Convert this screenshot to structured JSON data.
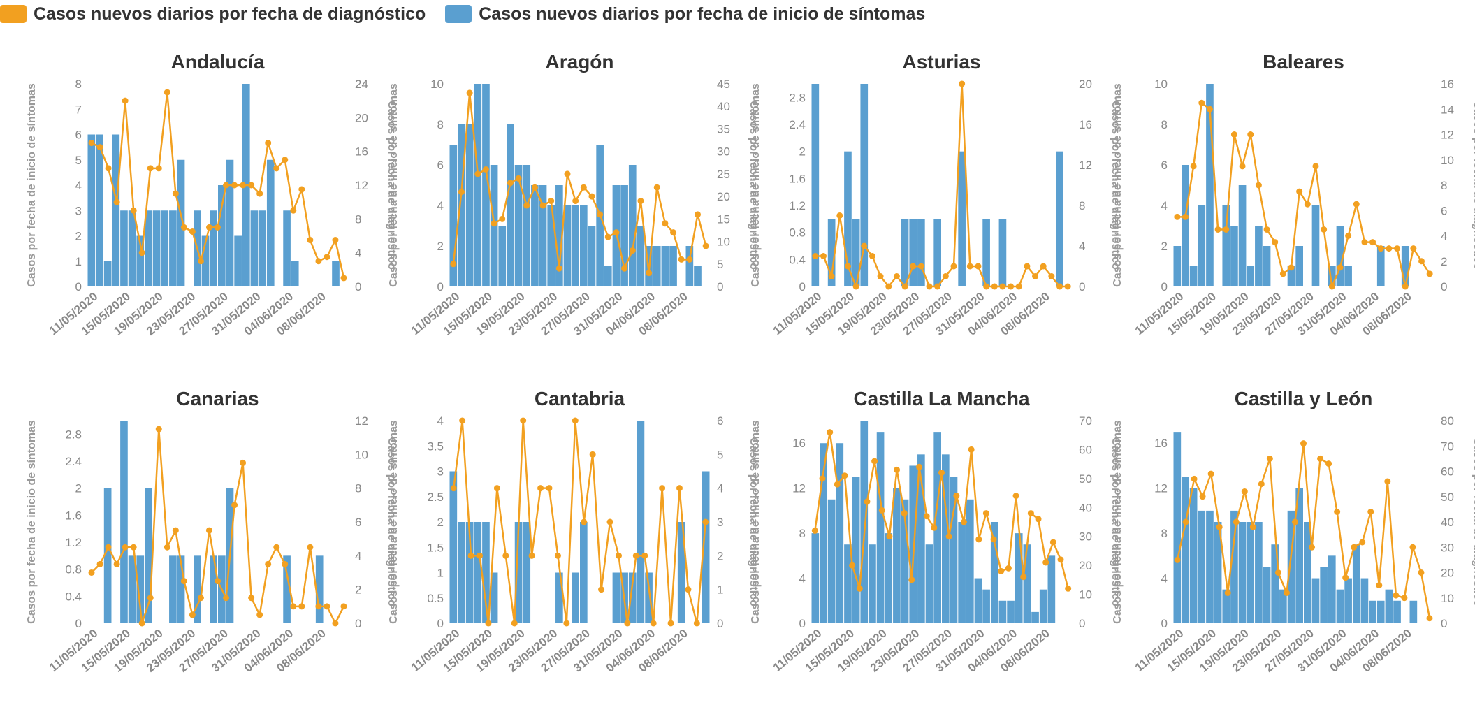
{
  "legend": {
    "diagnosis_label": "Casos nuevos diarios por fecha de diagnóstico",
    "symptoms_label": "Casos nuevos diarios por fecha de inicio de síntomas",
    "diagnosis_color": "#f2a020",
    "symptoms_color": "#5a9fd0"
  },
  "axis_labels": {
    "left": "Casos por fecha de inicio de síntomas",
    "right": "Casos por fecha de diagnóstico"
  },
  "x_ticks": [
    "11/05/2020",
    "15/05/2020",
    "19/05/2020",
    "23/05/2020",
    "27/05/2020",
    "31/05/2020",
    "04/06/2020",
    "08/06/2020"
  ],
  "chart_data": [
    {
      "type": "bar+line",
      "title": "Andalucía",
      "x_start": "11/05/2020",
      "left_ylim": [
        0,
        8
      ],
      "left_ticks": [
        "0",
        "1",
        "2",
        "3",
        "4",
        "5",
        "6",
        "7",
        "8"
      ],
      "right_ylim": [
        0,
        24
      ],
      "right_ticks": [
        "0",
        "4",
        "8",
        "12",
        "16",
        "20",
        "24"
      ],
      "bars_symptoms": [
        6,
        6,
        1,
        6,
        3,
        3,
        2,
        3,
        3,
        3,
        3,
        5,
        0,
        3,
        2,
        3,
        4,
        5,
        2,
        8,
        3,
        3,
        5,
        0,
        3,
        1,
        0,
        0,
        0,
        0,
        1,
        0
      ],
      "line_diagnosis": [
        17,
        16.5,
        14,
        10,
        22,
        9,
        4,
        14,
        14,
        23,
        11,
        7,
        6.5,
        3,
        7,
        7,
        12,
        12,
        12,
        12,
        11,
        17,
        14,
        15,
        9,
        11.5,
        5.5,
        3,
        3.5,
        5.5,
        1
      ]
    },
    {
      "type": "bar+line",
      "title": "Aragón",
      "x_start": "11/05/2020",
      "left_ylim": [
        0,
        10
      ],
      "left_ticks": [
        "0",
        "2",
        "4",
        "6",
        "8",
        "10"
      ],
      "right_ylim": [
        0,
        45
      ],
      "right_ticks": [
        "0",
        "5",
        "10",
        "15",
        "20",
        "25",
        "30",
        "35",
        "40",
        "45"
      ],
      "bars_symptoms": [
        7,
        8,
        8,
        10,
        10,
        6,
        3,
        8,
        6,
        6,
        5,
        5,
        4,
        5,
        4,
        4,
        4,
        3,
        7,
        1,
        5,
        5,
        6,
        3,
        2,
        2,
        2,
        2,
        0,
        2,
        1
      ],
      "line_diagnosis": [
        5,
        21,
        43,
        25,
        26,
        14,
        15,
        23,
        24,
        18,
        22,
        18,
        19,
        4,
        25,
        19,
        22,
        20,
        16,
        11,
        12,
        4,
        8,
        19,
        3,
        22,
        14,
        12,
        6,
        6,
        16,
        9
      ]
    },
    {
      "type": "bar+line",
      "title": "Asturias",
      "x_start": "11/05/2020",
      "left_ylim": [
        0,
        3
      ],
      "left_ticks": [
        "0",
        "0.4",
        "0.8",
        "1.2",
        "1.6",
        "2",
        "2.4",
        "2.8"
      ],
      "right_ylim": [
        0,
        20
      ],
      "right_ticks": [
        "0",
        "4",
        "8",
        "12",
        "16",
        "20"
      ],
      "bars_symptoms": [
        3,
        0,
        1,
        0,
        2,
        1,
        3,
        0,
        0,
        0,
        0,
        1,
        1,
        1,
        0,
        1,
        0,
        0,
        2,
        0,
        0,
        1,
        0,
        1,
        0,
        0,
        0,
        0,
        0,
        0,
        2,
        0,
        0
      ],
      "line_diagnosis": [
        3,
        3,
        1,
        7,
        2,
        0,
        4,
        3,
        1,
        0,
        1,
        0,
        2,
        2,
        0,
        0,
        1,
        2,
        20,
        2,
        2,
        0,
        0,
        0,
        0,
        0,
        2,
        1,
        2,
        1,
        0,
        0
      ]
    },
    {
      "type": "bar+line",
      "title": "Baleares",
      "x_start": "11/05/2020",
      "left_ylim": [
        0,
        10
      ],
      "left_ticks": [
        "0",
        "2",
        "4",
        "6",
        "8",
        "10"
      ],
      "right_ylim": [
        0,
        16
      ],
      "right_ticks": [
        "0",
        "2",
        "4",
        "6",
        "8",
        "10",
        "12",
        "14",
        "16"
      ],
      "bars_symptoms": [
        2,
        6,
        1,
        4,
        10,
        0,
        4,
        3,
        5,
        1,
        3,
        2,
        0,
        0,
        1,
        2,
        0,
        4,
        0,
        1,
        3,
        1,
        0,
        0,
        0,
        2,
        0,
        0,
        2,
        0
      ],
      "line_diagnosis": [
        5.5,
        5.5,
        9.5,
        14.5,
        14,
        4.5,
        4.5,
        12,
        9.5,
        12,
        8,
        4.5,
        3.5,
        1,
        1.5,
        7.5,
        6.5,
        9.5,
        4.5,
        0,
        1.5,
        4,
        6.5,
        3.5,
        3.5,
        3,
        3,
        3,
        0,
        3,
        2,
        1
      ]
    },
    {
      "type": "bar+line",
      "title": "Canarias",
      "x_start": "11/05/2020",
      "left_ylim": [
        0,
        3
      ],
      "left_ticks": [
        "0",
        "0.4",
        "0.8",
        "1.2",
        "1.6",
        "2",
        "2.4",
        "2.8"
      ],
      "right_ylim": [
        0,
        12
      ],
      "right_ticks": [
        "0",
        "2",
        "4",
        "6",
        "8",
        "10",
        "12"
      ],
      "bars_symptoms": [
        0,
        0,
        2,
        0,
        3,
        1,
        1,
        2,
        0,
        0,
        1,
        1,
        0,
        1,
        0,
        1,
        1,
        2,
        0,
        0,
        0,
        0,
        0,
        0,
        1,
        0,
        0,
        0,
        1,
        0
      ],
      "line_diagnosis": [
        3,
        3.5,
        4.5,
        3.5,
        4.5,
        4.5,
        0,
        1.5,
        11.5,
        4.5,
        5.5,
        2.5,
        0.5,
        1.5,
        5.5,
        2.5,
        1.5,
        7,
        9.5,
        1.5,
        0.5,
        3.5,
        4.5,
        3.5,
        1,
        1,
        4.5,
        1,
        1,
        0,
        1
      ]
    },
    {
      "type": "bar+line",
      "title": "Cantabria",
      "x_start": "11/05/2020",
      "left_ylim": [
        0,
        4
      ],
      "left_ticks": [
        "0",
        "0.5",
        "1",
        "1.5",
        "2",
        "2.5",
        "3",
        "3.5",
        "4"
      ],
      "right_ylim": [
        0,
        6
      ],
      "right_ticks": [
        "0",
        "1",
        "2",
        "3",
        "4",
        "5",
        "6"
      ],
      "bars_symptoms": [
        3,
        2,
        2,
        2,
        2,
        1,
        0,
        0,
        2,
        2,
        0,
        0,
        0,
        1,
        0,
        1,
        2,
        0,
        0,
        0,
        1,
        1,
        1,
        4,
        1,
        0,
        0,
        0,
        2,
        0,
        0,
        3
      ],
      "line_diagnosis": [
        4,
        6,
        2,
        2,
        0,
        4,
        2,
        0,
        6,
        2,
        4,
        4,
        2,
        0,
        6,
        3,
        5,
        1,
        3,
        2,
        0,
        2,
        2,
        0,
        4,
        0,
        4,
        1,
        0,
        3
      ]
    },
    {
      "type": "bar+line",
      "title": "Castilla La Mancha",
      "x_start": "11/05/2020",
      "left_ylim": [
        0,
        18
      ],
      "left_ticks": [
        "0",
        "4",
        "8",
        "12",
        "16"
      ],
      "right_ylim": [
        0,
        70
      ],
      "right_ticks": [
        "0",
        "10",
        "20",
        "30",
        "40",
        "50",
        "60",
        "70"
      ],
      "bars_symptoms": [
        8,
        16,
        11,
        16,
        7,
        13,
        18,
        7,
        17,
        8,
        12,
        11,
        14,
        15,
        7,
        17,
        15,
        13,
        9,
        11,
        4,
        3,
        9,
        2,
        2,
        8,
        7,
        1,
        3,
        6
      ],
      "line_diagnosis": [
        32,
        50,
        66,
        48,
        51,
        20,
        12,
        42,
        56,
        39,
        30,
        53,
        38,
        15,
        54,
        37,
        33,
        52,
        30,
        44,
        35,
        60,
        29,
        38,
        29,
        18,
        19,
        44,
        16,
        38,
        36,
        21,
        28,
        22,
        12
      ]
    },
    {
      "type": "bar+line",
      "title": "Castilla y León",
      "x_start": "11/05/2020",
      "left_ylim": [
        0,
        18
      ],
      "left_ticks": [
        "0",
        "4",
        "8",
        "12",
        "16"
      ],
      "right_ylim": [
        0,
        80
      ],
      "right_ticks": [
        "0",
        "10",
        "20",
        "30",
        "40",
        "50",
        "60",
        "70",
        "80"
      ],
      "bars_symptoms": [
        17,
        13,
        12,
        10,
        10,
        9,
        3,
        10,
        9,
        9,
        9,
        5,
        7,
        3,
        10,
        12,
        9,
        4,
        5,
        6,
        3,
        4,
        7,
        4,
        2,
        2,
        3,
        2,
        0,
        2
      ],
      "line_diagnosis": [
        25,
        40,
        57,
        50,
        59,
        38,
        12,
        40,
        52,
        38,
        55,
        65,
        20,
        12,
        40,
        71,
        30,
        65,
        63,
        44,
        18,
        30,
        32,
        44,
        15,
        56,
        11,
        10,
        30,
        20,
        2
      ]
    }
  ]
}
